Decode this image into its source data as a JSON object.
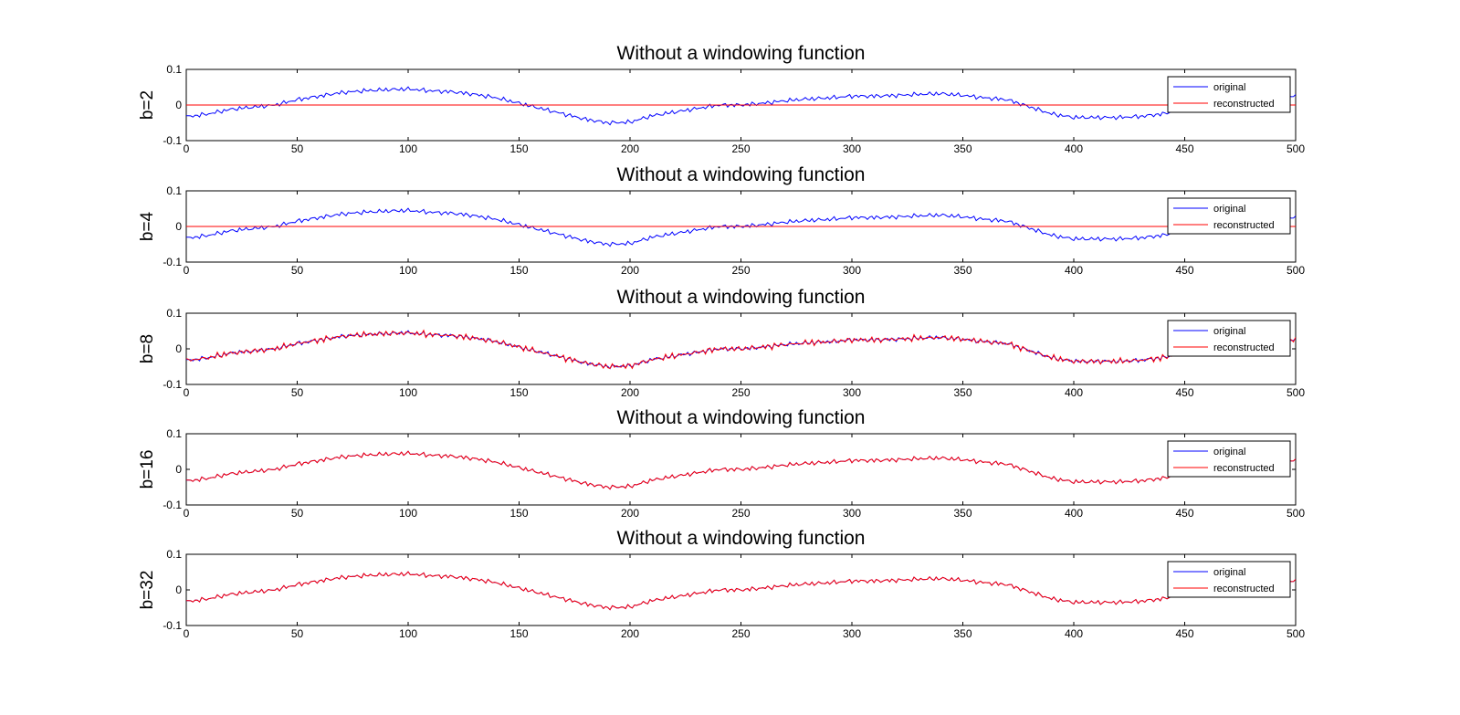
{
  "figure": {
    "background": "#ffffff"
  },
  "chart_data": [
    {
      "type": "line",
      "title": "Without a windowing function",
      "ylabel": "b=2",
      "xlim": [
        0,
        500
      ],
      "ylim": [
        -0.1,
        0.1
      ],
      "xticks": [
        "0",
        "50",
        "100",
        "150",
        "200",
        "250",
        "300",
        "350",
        "400",
        "450",
        "500"
      ],
      "yticks": [
        "0.1",
        "0",
        "-0.1"
      ],
      "legend": {
        "position": "top-right",
        "entries": [
          "original",
          "reconstructed"
        ]
      },
      "series": [
        {
          "name": "original",
          "color": "#0000ff",
          "signal": "original"
        },
        {
          "name": "reconstructed",
          "color": "#ff0000",
          "constant": 0
        }
      ]
    },
    {
      "type": "line",
      "title": "Without a windowing function",
      "ylabel": "b=4",
      "xlim": [
        0,
        500
      ],
      "ylim": [
        -0.1,
        0.1
      ],
      "xticks": [
        "0",
        "50",
        "100",
        "150",
        "200",
        "250",
        "300",
        "350",
        "400",
        "450",
        "500"
      ],
      "yticks": [
        "0.1",
        "0",
        "-0.1"
      ],
      "legend": {
        "position": "top-right",
        "entries": [
          "original",
          "reconstructed"
        ]
      },
      "series": [
        {
          "name": "original",
          "color": "#0000ff",
          "signal": "original"
        },
        {
          "name": "reconstructed",
          "color": "#ff0000",
          "constant": 0
        }
      ]
    },
    {
      "type": "line",
      "title": "Without a windowing function",
      "ylabel": "b=8",
      "xlim": [
        0,
        500
      ],
      "ylim": [
        -0.1,
        0.1
      ],
      "xticks": [
        "0",
        "50",
        "100",
        "150",
        "200",
        "250",
        "300",
        "350",
        "400",
        "450",
        "500"
      ],
      "yticks": [
        "0.1",
        "0",
        "-0.1"
      ],
      "legend": {
        "position": "top-right",
        "entries": [
          "original",
          "reconstructed"
        ]
      },
      "series": [
        {
          "name": "original",
          "color": "#0000ff",
          "signal": "original"
        },
        {
          "name": "reconstructed",
          "color": "#ff0000",
          "signal": "original",
          "quantization_step": 0.007
        }
      ]
    },
    {
      "type": "line",
      "title": "Without a windowing function",
      "ylabel": "b=16",
      "xlim": [
        0,
        500
      ],
      "ylim": [
        -0.1,
        0.1
      ],
      "xticks": [
        "0",
        "50",
        "100",
        "150",
        "200",
        "250",
        "300",
        "350",
        "400",
        "450",
        "500"
      ],
      "yticks": [
        "0.1",
        "0",
        "-0.1"
      ],
      "legend": {
        "position": "top-right",
        "entries": [
          "original",
          "reconstructed"
        ]
      },
      "series": [
        {
          "name": "original",
          "color": "#0000ff",
          "signal": "original"
        },
        {
          "name": "reconstructed",
          "color": "#ff0000",
          "signal": "original"
        }
      ]
    },
    {
      "type": "line",
      "title": "Without a windowing function",
      "ylabel": "b=32",
      "xlim": [
        0,
        500
      ],
      "ylim": [
        -0.1,
        0.1
      ],
      "xticks": [
        "0",
        "50",
        "100",
        "150",
        "200",
        "250",
        "300",
        "350",
        "400",
        "450",
        "500"
      ],
      "yticks": [
        "0.1",
        "0",
        "-0.1"
      ],
      "legend": {
        "position": "top-right",
        "entries": [
          "original",
          "reconstructed"
        ]
      },
      "series": [
        {
          "name": "original",
          "color": "#0000ff",
          "signal": "original"
        },
        {
          "name": "reconstructed",
          "color": "#ff0000",
          "signal": "original"
        }
      ]
    }
  ],
  "original_signal": {
    "x": [
      0,
      10,
      20,
      30,
      40,
      50,
      60,
      70,
      80,
      90,
      100,
      110,
      120,
      130,
      140,
      150,
      160,
      170,
      180,
      190,
      200,
      210,
      220,
      230,
      240,
      250,
      260,
      270,
      280,
      290,
      300,
      310,
      320,
      330,
      340,
      350,
      360,
      370,
      380,
      390,
      400,
      410,
      420,
      430,
      440,
      450,
      460,
      470,
      480,
      490,
      500
    ],
    "y": [
      -0.033,
      -0.025,
      -0.012,
      -0.006,
      0.0,
      0.015,
      0.025,
      0.035,
      0.04,
      0.043,
      0.045,
      0.04,
      0.037,
      0.03,
      0.02,
      0.005,
      -0.01,
      -0.025,
      -0.04,
      -0.05,
      -0.048,
      -0.03,
      -0.02,
      -0.01,
      0.0,
      0.0,
      0.005,
      0.012,
      0.017,
      0.02,
      0.025,
      0.025,
      0.027,
      0.03,
      0.032,
      0.027,
      0.02,
      0.015,
      -0.005,
      -0.025,
      -0.035,
      -0.035,
      -0.035,
      -0.032,
      -0.025,
      -0.01,
      0.0,
      0.005,
      0.01,
      0.015,
      0.028
    ]
  }
}
